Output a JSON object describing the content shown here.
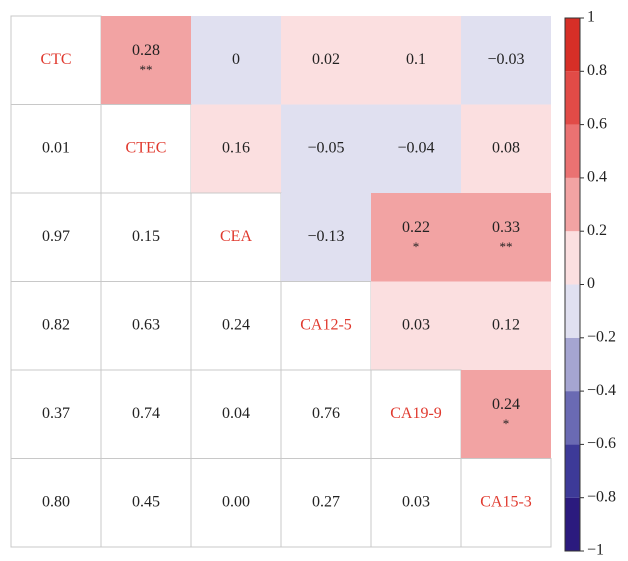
{
  "chart_data": {
    "type": "heatmap",
    "variables": [
      "CTC",
      "CTEC",
      "CEA",
      "CA12-5",
      "CA19-9",
      "CA15-3"
    ],
    "label_color": "#e0392e",
    "correlation": {
      "values": [
        [
          null,
          0.28,
          0,
          0.02,
          0.1,
          -0.03
        ],
        [
          null,
          null,
          0.16,
          -0.05,
          -0.04,
          0.08
        ],
        [
          null,
          null,
          null,
          -0.13,
          0.22,
          0.33
        ],
        [
          null,
          null,
          null,
          null,
          0.03,
          0.12
        ],
        [
          null,
          null,
          null,
          null,
          null,
          0.24
        ],
        [
          null,
          null,
          null,
          null,
          null,
          null
        ]
      ],
      "value_labels": [
        [
          null,
          "0.28",
          "0",
          "0.02",
          "0.1",
          "−0.03"
        ],
        [
          null,
          null,
          "0.16",
          "−0.05",
          "−0.04",
          "0.08"
        ],
        [
          null,
          null,
          null,
          "−0.13",
          "0.22",
          "0.33"
        ],
        [
          null,
          null,
          null,
          null,
          "0.03",
          "0.12"
        ],
        [
          null,
          null,
          null,
          null,
          null,
          "0.24"
        ],
        [
          null,
          null,
          null,
          null,
          null,
          null
        ]
      ],
      "stars": [
        [
          null,
          "**",
          null,
          null,
          null,
          null
        ],
        [
          null,
          null,
          null,
          null,
          null,
          null
        ],
        [
          null,
          null,
          null,
          null,
          "*",
          "**"
        ],
        [
          null,
          null,
          null,
          null,
          null,
          null
        ],
        [
          null,
          null,
          null,
          null,
          null,
          "*"
        ],
        [
          null,
          null,
          null,
          null,
          null,
          null
        ]
      ]
    },
    "p_value": {
      "values": [
        [
          null,
          null,
          null,
          null,
          null,
          null
        ],
        [
          0.01,
          null,
          null,
          null,
          null,
          null
        ],
        [
          0.97,
          0.15,
          null,
          null,
          null,
          null
        ],
        [
          0.82,
          0.63,
          0.24,
          null,
          null,
          null
        ],
        [
          0.37,
          0.74,
          0.04,
          0.76,
          null,
          null
        ],
        [
          0.8,
          0.45,
          0,
          0.27,
          0.03,
          null
        ]
      ],
      "value_labels": [
        [
          null,
          null,
          null,
          null,
          null,
          null
        ],
        [
          "0.01",
          null,
          null,
          null,
          null,
          null
        ],
        [
          "0.97",
          "0.15",
          null,
          null,
          null,
          null
        ],
        [
          "0.82",
          "0.63",
          "0.24",
          null,
          null,
          null
        ],
        [
          "0.37",
          "0.74",
          "0.04",
          "0.76",
          null,
          null
        ],
        [
          "0.80",
          "0.45",
          "0.00",
          "0.27",
          "0.03",
          null
        ]
      ]
    },
    "colorbar": {
      "lim": [
        -1,
        1
      ],
      "bins": [
        -1,
        -0.8,
        -0.6,
        -0.4,
        -0.2,
        0,
        0.2,
        0.4,
        0.6,
        0.8,
        1
      ],
      "colors": [
        "#2b1a7e",
        "#3d3a98",
        "#6a6ab3",
        "#a5a5d1",
        "#e0e0f0",
        "#fbdfe0",
        "#f2a3a3",
        "#ea7272",
        "#e14b47",
        "#d62f27"
      ],
      "ticks": [
        1,
        0.8,
        0.6,
        0.4,
        0.2,
        0,
        {
          "value": -0.2,
          "label": "−0.2"
        },
        {
          "value": -0.4,
          "label": "−0.4"
        },
        {
          "value": -0.6,
          "label": "−0.6"
        },
        {
          "value": -0.8,
          "label": "−0.8"
        },
        {
          "value": -1,
          "label": "−1"
        }
      ]
    }
  }
}
